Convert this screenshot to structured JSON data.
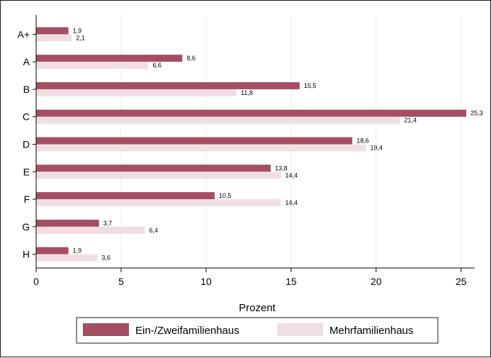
{
  "chart_data": {
    "type": "bar",
    "orientation": "horizontal",
    "categories": [
      "A+",
      "A",
      "B",
      "C",
      "D",
      "E",
      "F",
      "G",
      "H"
    ],
    "series": [
      {
        "name": "Ein-/Zweifamilienhaus",
        "color": "#a54e63",
        "values": [
          1.9,
          8.6,
          15.5,
          25.3,
          18.6,
          13.8,
          10.5,
          3.7,
          1.9
        ],
        "labels": [
          "1,9",
          "8,6",
          "15,5",
          "25,3",
          "18,6",
          "13,8",
          "10,5",
          "3,7",
          "1,9"
        ]
      },
      {
        "name": "Mehrfamilienhaus",
        "color": "#f0dfe2",
        "values": [
          2.1,
          6.6,
          11.8,
          21.4,
          19.4,
          14.4,
          14.4,
          6.4,
          3.6
        ],
        "labels": [
          "2,1",
          "6,6",
          "11,8",
          "21,4",
          "19,4",
          "14,4",
          "14,4",
          "6,4",
          "3,6"
        ]
      }
    ],
    "xlabel": "Prozent",
    "xlim": [
      0,
      25.8
    ],
    "xticks": [
      0,
      5,
      10,
      15,
      20,
      25
    ],
    "grid": true,
    "legend": "bottom"
  }
}
